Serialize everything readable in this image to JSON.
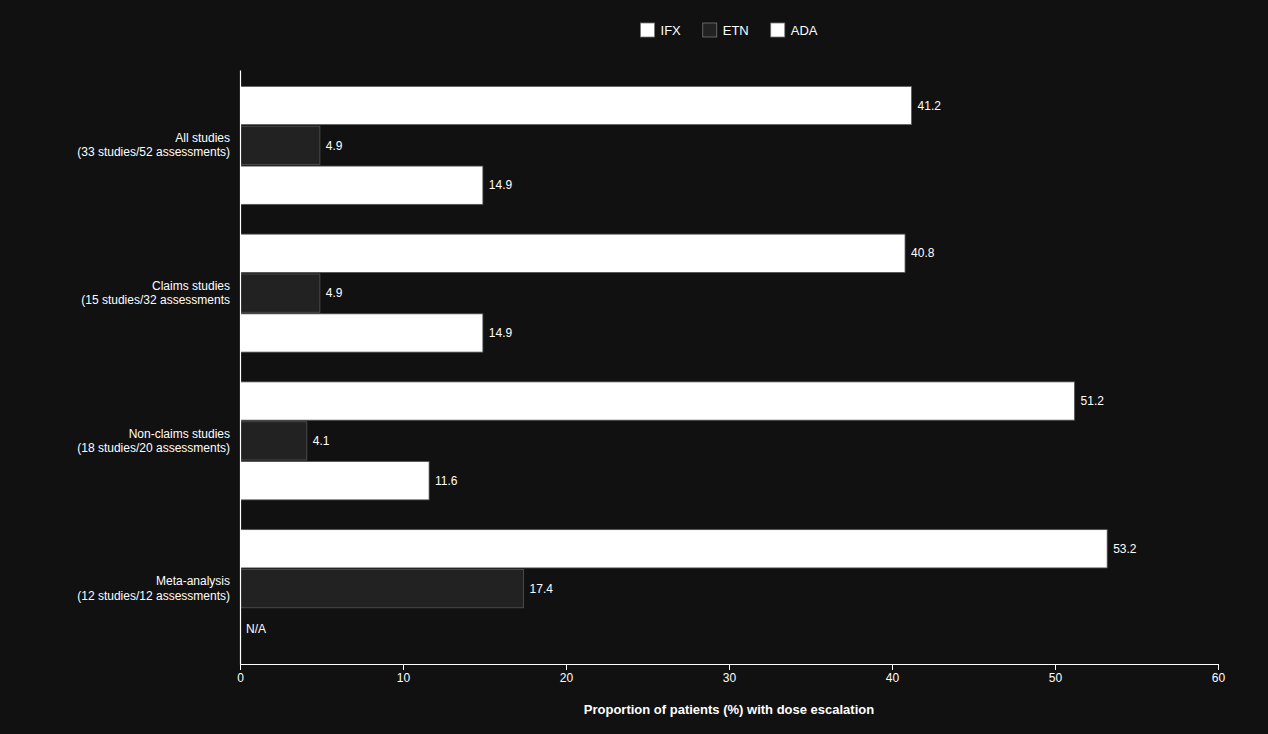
{
  "chart_data": {
    "type": "bar",
    "orientation": "horizontal",
    "categories": [
      "Meta-analysis\n(12 studies/12 assessments)",
      "Non-claims studies\n(18 studies/20 assessments)",
      "Claims studies\n(15 studies/32 assessments",
      "All studies\n(33 studies/52 assessments)"
    ],
    "series": [
      {
        "name": "IFX",
        "color": "#ffffff",
        "values": [
          53.2,
          51.2,
          40.8,
          41.2
        ]
      },
      {
        "name": "ETN",
        "color": "#222222",
        "values": [
          17.4,
          4.1,
          4.9,
          4.9
        ]
      },
      {
        "name": "ADA",
        "color": "#ffffff",
        "values": [
          null,
          11.6,
          14.9,
          14.9
        ],
        "value_labels": [
          "N/A",
          "11.6",
          "14.9",
          "14.9"
        ]
      }
    ],
    "xlabel": "Proportion of patients (%) with dose escalation",
    "xlim": [
      0,
      60
    ],
    "xticks": [
      0,
      10,
      20,
      30,
      40,
      50,
      60
    ],
    "data_labels": true,
    "legend": "top",
    "grid": false
  }
}
